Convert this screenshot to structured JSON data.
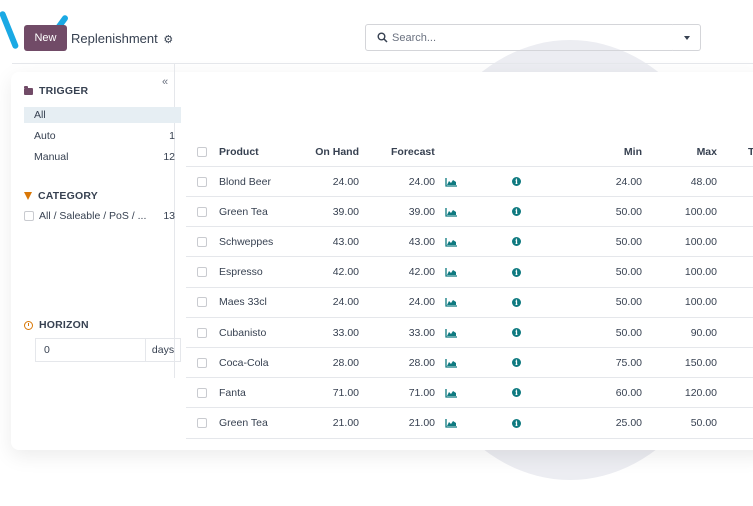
{
  "toolbar": {
    "new_label": "New",
    "title": "Replenishment",
    "settings_icon": "gear-icon"
  },
  "search": {
    "placeholder": "Search...",
    "icon": "search-icon",
    "dropdown_icon": "caret-down-icon"
  },
  "sidebar": {
    "collapse_label": "«",
    "trigger": {
      "heading": "TRIGGER",
      "icon": "folder-icon",
      "items": [
        {
          "label": "All",
          "count": ""
        },
        {
          "label": "Auto",
          "count": "1"
        },
        {
          "label": "Manual",
          "count": "12"
        }
      ]
    },
    "category": {
      "heading": "CATEGORY",
      "icon": "filter-icon",
      "items": [
        {
          "label": "All / Saleable / PoS / ...",
          "count": "13"
        }
      ]
    },
    "horizon": {
      "heading": "HORIZON",
      "icon": "clock-icon",
      "value": "0",
      "unit": "days"
    }
  },
  "table": {
    "columns": {
      "product": "Product",
      "on_hand": "On Hand",
      "forecast": "Forecast",
      "min": "Min",
      "max": "Max",
      "truncated": "T"
    },
    "rows": [
      {
        "product": "Blond Beer",
        "on_hand": "24.00",
        "forecast": "24.00",
        "min": "24.00",
        "max": "48.00"
      },
      {
        "product": "Green Tea",
        "on_hand": "39.00",
        "forecast": "39.00",
        "min": "50.00",
        "max": "100.00"
      },
      {
        "product": "Schweppes",
        "on_hand": "43.00",
        "forecast": "43.00",
        "min": "50.00",
        "max": "100.00"
      },
      {
        "product": "Espresso",
        "on_hand": "42.00",
        "forecast": "42.00",
        "min": "50.00",
        "max": "100.00"
      },
      {
        "product": "Maes 33cl",
        "on_hand": "24.00",
        "forecast": "24.00",
        "min": "50.00",
        "max": "100.00"
      },
      {
        "product": "Cubanisto",
        "on_hand": "33.00",
        "forecast": "33.00",
        "min": "50.00",
        "max": "90.00"
      },
      {
        "product": "Coca-Cola",
        "on_hand": "28.00",
        "forecast": "28.00",
        "min": "75.00",
        "max": "150.00"
      },
      {
        "product": "Fanta",
        "on_hand": "71.00",
        "forecast": "71.00",
        "min": "60.00",
        "max": "120.00"
      },
      {
        "product": "Green Tea",
        "on_hand": "21.00",
        "forecast": "21.00",
        "min": "25.00",
        "max": "50.00"
      }
    ],
    "row_icons": {
      "forecast_chart": "area-chart-icon",
      "info": "info-icon"
    }
  },
  "colors": {
    "primary": "#714b67",
    "accent_teal": "#0f7a80",
    "filter_orange": "#d97706",
    "decor_blue": "#1aa9e4"
  }
}
